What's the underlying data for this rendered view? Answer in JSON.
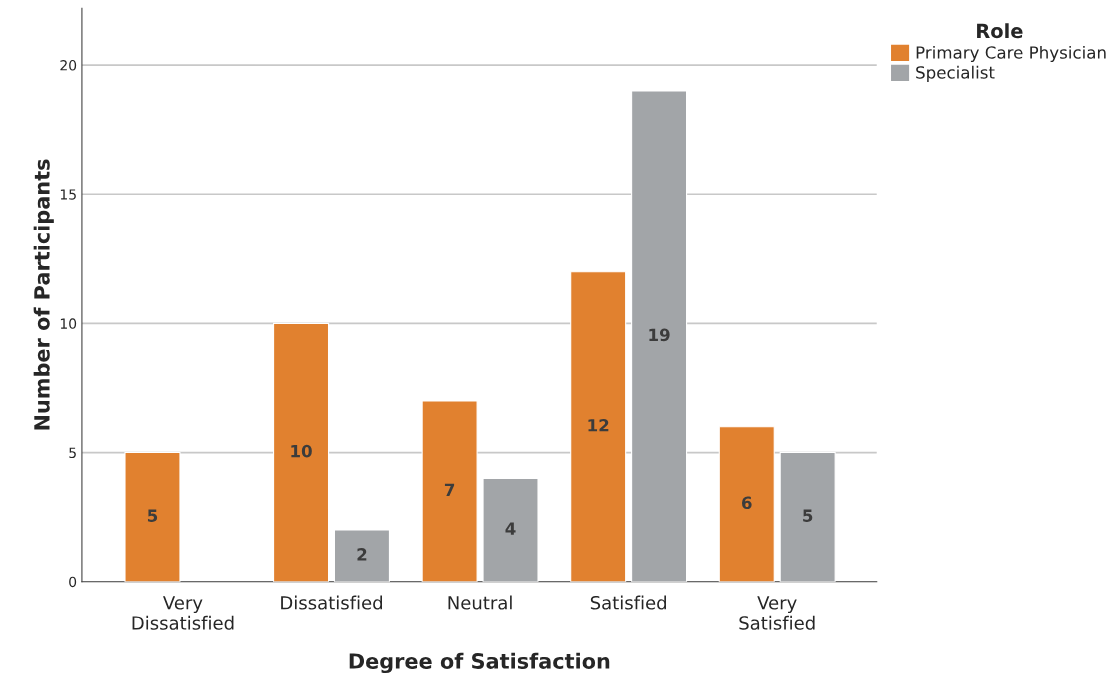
{
  "chart_data": {
    "type": "bar",
    "xlabel": "Degree of Satisfaction",
    "ylabel": "Number of Participants",
    "legend_title": "Role",
    "categories": [
      "Very\nDissatisfied",
      "Dissatisfied",
      "Neutral",
      "Satisfied",
      "Very\nSatisfied"
    ],
    "series": [
      {
        "name": "Primary Care Physician",
        "color": "#e1812f",
        "values": [
          5,
          10,
          7,
          12,
          6
        ]
      },
      {
        "name": "Specialist",
        "color": "#a2a5a8",
        "values": [
          null,
          2,
          4,
          19,
          5
        ]
      }
    ],
    "ylim": [
      0,
      22.2
    ],
    "yticks": [
      0,
      5,
      10,
      15,
      20
    ],
    "grid": "y",
    "legend": "top right",
    "data_labels": true
  }
}
